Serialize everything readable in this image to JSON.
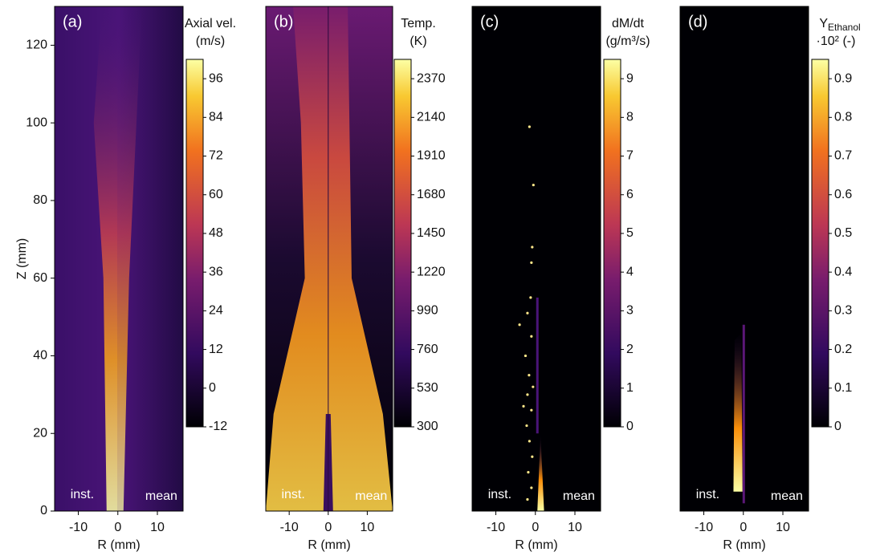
{
  "chart_data": [
    {
      "type": "image",
      "panel_label": "(a)",
      "xlabel": "R (mm)",
      "ylabel": "Z (mm)",
      "xlim": [
        -16,
        16.5
      ],
      "xticks": [
        -10,
        0,
        10
      ],
      "ylim": [
        0,
        130
      ],
      "yticks": [
        0,
        20,
        40,
        60,
        80,
        100,
        120
      ],
      "annotations": [
        "inst.",
        "mean"
      ],
      "colorbar": {
        "title_lines": [
          "Axial vel.",
          "(m/s)"
        ],
        "lim": [
          -12,
          102
        ],
        "ticks": [
          -12,
          0,
          12,
          24,
          36,
          48,
          60,
          72,
          84,
          96
        ]
      }
    },
    {
      "type": "image",
      "panel_label": "(b)",
      "xlabel": "R (mm)",
      "xlim": [
        -16,
        16.5
      ],
      "xticks": [
        -10,
        0,
        10
      ],
      "ylim": [
        0,
        130
      ],
      "annotations": [
        "inst.",
        "mean"
      ],
      "colorbar": {
        "title_lines": [
          "Temp.",
          "(K)"
        ],
        "lim": [
          300,
          2485
        ],
        "ticks": [
          300,
          530,
          760,
          990,
          1220,
          1450,
          1680,
          1910,
          2140,
          2370
        ]
      }
    },
    {
      "type": "image",
      "panel_label": "(c)",
      "xlabel": "R (mm)",
      "xlim": [
        -16,
        16.5
      ],
      "xticks": [
        -10,
        0,
        10
      ],
      "ylim": [
        0,
        130
      ],
      "annotations": [
        "inst.",
        "mean"
      ],
      "colorbar": {
        "title_lines": [
          "dM/dt",
          "(g/m³/s)"
        ],
        "lim": [
          0,
          9.5
        ],
        "ticks": [
          0,
          1,
          2,
          3,
          4,
          5,
          6,
          7,
          8,
          9
        ]
      }
    },
    {
      "type": "image",
      "panel_label": "(d)",
      "xlabel": "R (mm)",
      "xlim": [
        -16,
        16.5
      ],
      "xticks": [
        -10,
        0,
        10
      ],
      "ylim": [
        0,
        130
      ],
      "annotations": [
        "inst.",
        "mean"
      ],
      "colorbar": {
        "title_lines": [
          "Y",
          "·10² (-)"
        ],
        "title_subscript": "Ethanol",
        "lim": [
          0,
          0.95
        ],
        "ticks": [
          0,
          0.1,
          0.2,
          0.3,
          0.4,
          0.5,
          0.6,
          0.7,
          0.8,
          0.9
        ]
      }
    }
  ]
}
